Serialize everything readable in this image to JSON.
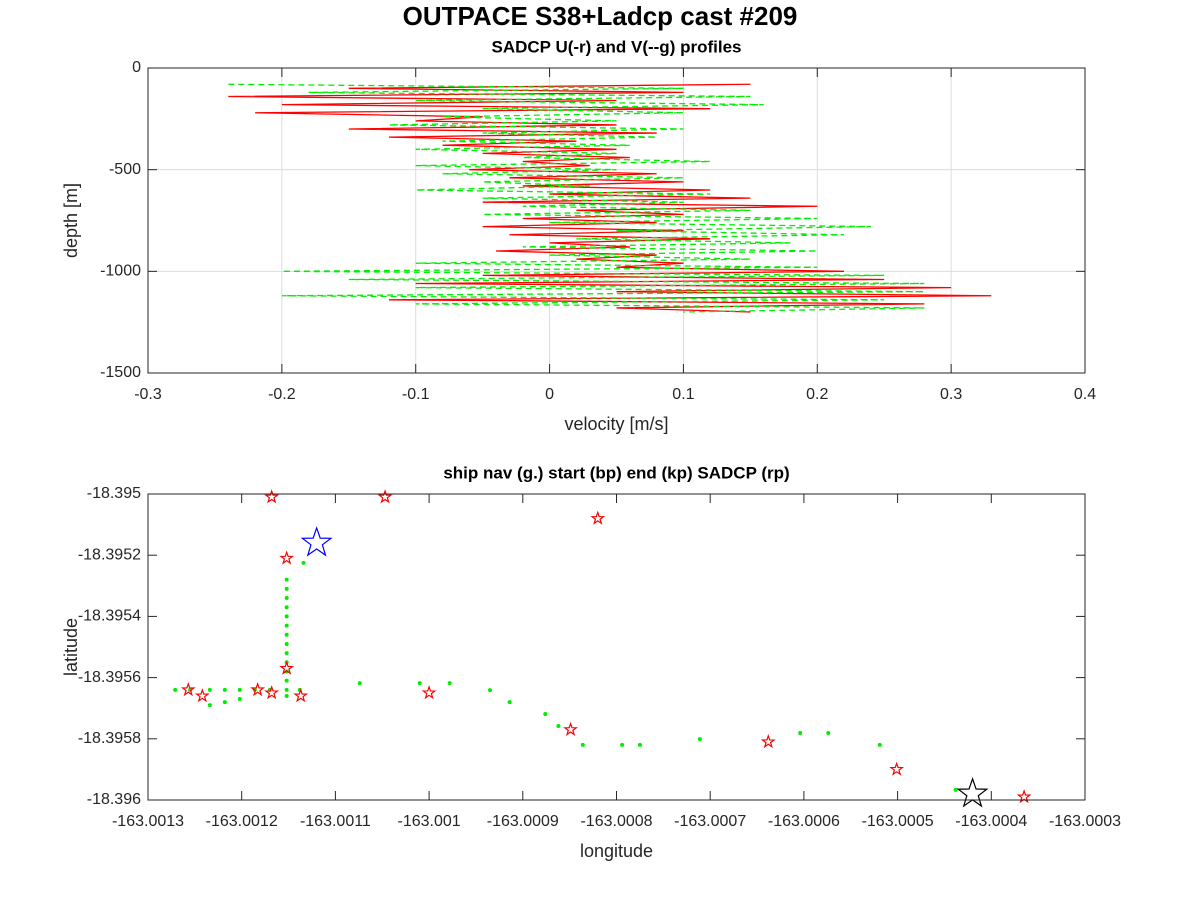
{
  "title": "OUTPACE S38+Ladcp cast #209",
  "chart_data": [
    {
      "type": "line",
      "title": "SADCP U(-r) and V(--g) profiles",
      "xlabel": "velocity [m/s]",
      "ylabel": "depth [m]",
      "xlim": [
        -0.3,
        0.4
      ],
      "xticks": [
        -0.3,
        -0.2,
        -0.1,
        0,
        0.1,
        0.2,
        0.3,
        0.4
      ],
      "ylim": [
        -1500,
        0
      ],
      "yticks": [
        -1500,
        -1000,
        -500,
        0
      ],
      "grid": true,
      "series": [
        {
          "color": "#ff0000",
          "dash": "solid",
          "x": [
            0.15,
            -0.15,
            0.1,
            -0.24,
            0.05,
            -0.2,
            0.12,
            -0.22,
            -0.05,
            -0.1,
            0.05,
            -0.15,
            0.08,
            -0.12,
            0.02,
            -0.08,
            0.05,
            -0.05,
            0.06,
            -0.02,
            0.03,
            -0.06,
            0.08,
            -0.03,
            0.1,
            -0.02,
            0.12,
            0.0,
            0.15,
            -0.05,
            0.2,
            0.02,
            0.1,
            -0.02,
            0.08,
            -0.05,
            0.1,
            -0.03,
            0.12,
            0.0,
            0.06,
            -0.04,
            0.08,
            0.02,
            0.1,
            0.05,
            0.22,
            -0.05,
            0.25,
            -0.1,
            0.3,
            0.05,
            0.33,
            -0.12,
            0.28,
            0.05,
            0.15
          ],
          "y": [
            -80,
            -100,
            -120,
            -140,
            -160,
            -180,
            -200,
            -220,
            -240,
            -260,
            -280,
            -300,
            -320,
            -340,
            -360,
            -380,
            -400,
            -420,
            -440,
            -460,
            -480,
            -500,
            -520,
            -540,
            -560,
            -580,
            -600,
            -620,
            -640,
            -660,
            -680,
            -700,
            -720,
            -740,
            -760,
            -780,
            -800,
            -820,
            -840,
            -860,
            -880,
            -900,
            -920,
            -940,
            -960,
            -980,
            -1000,
            -1020,
            -1040,
            -1060,
            -1080,
            -1100,
            -1120,
            -1140,
            -1160,
            -1180,
            -1200
          ]
        },
        {
          "color": "#00ee00",
          "dash": "dashed",
          "x": [
            -0.24,
            0.1,
            -0.18,
            0.15,
            -0.1,
            0.16,
            -0.05,
            0.1,
            -0.08,
            0.05,
            -0.12,
            0.1,
            -0.05,
            0.08,
            -0.08,
            0.06,
            -0.1,
            0.05,
            -0.02,
            0.12,
            -0.1,
            0.05,
            -0.08,
            0.1,
            -0.05,
            0.03,
            -0.1,
            0.12,
            -0.05,
            0.1,
            -0.02,
            0.15,
            -0.05,
            0.2,
            0.0,
            0.24,
            0.05,
            0.22,
            0.02,
            0.18,
            -0.02,
            0.2,
            0.0,
            0.15,
            -0.1,
            0.2,
            -0.2,
            0.25,
            -0.15,
            0.28,
            -0.1,
            0.28,
            -0.2,
            0.25,
            -0.1,
            0.28,
            0.1
          ],
          "y": [
            -80,
            -100,
            -120,
            -140,
            -160,
            -180,
            -200,
            -220,
            -240,
            -260,
            -280,
            -300,
            -320,
            -340,
            -360,
            -380,
            -400,
            -420,
            -440,
            -460,
            -480,
            -500,
            -520,
            -540,
            -560,
            -580,
            -600,
            -620,
            -640,
            -660,
            -680,
            -700,
            -720,
            -740,
            -760,
            -780,
            -800,
            -820,
            -840,
            -860,
            -880,
            -900,
            -920,
            -940,
            -960,
            -980,
            -1000,
            -1020,
            -1040,
            -1060,
            -1080,
            -1100,
            -1120,
            -1140,
            -1160,
            -1180,
            -1200
          ]
        }
      ]
    },
    {
      "type": "scatter",
      "title": "ship nav (g.) start (bp) end (kp) SADCP (rp)",
      "xlabel": "longitude",
      "ylabel": "latitude",
      "xlim": [
        -163.0013,
        -163.0003
      ],
      "xticks": [
        -163.0013,
        -163.0012,
        -163.0011,
        -163.001,
        -163.0009,
        -163.0008,
        -163.0007,
        -163.0006,
        -163.0005,
        -163.0004,
        -163.0003
      ],
      "ylim": [
        -18.396,
        -18.395
      ],
      "yticks": [
        -18.396,
        -18.3958,
        -18.3956,
        -18.3954,
        -18.3952,
        -18.395
      ],
      "grid": false,
      "series": [
        {
          "color": "#00ee00",
          "marker": "dot",
          "markersize": 4,
          "x": [
            -163.001152,
            -163.001152,
            -163.001152,
            -163.001152,
            -163.001152,
            -163.001152,
            -163.001152,
            -163.001152,
            -163.001152,
            -163.001152,
            -163.001152,
            -163.001152,
            -163.001152,
            -163.001152,
            -163.001271,
            -163.001255,
            -163.001234,
            -163.001218,
            -163.001202,
            -163.001186,
            -163.00117,
            -163.001138,
            -163.001234,
            -163.001218,
            -163.001202,
            -163.001134,
            -163.001074,
            -163.00101,
            -163.000978,
            -163.000935,
            -163.000914,
            -163.000876,
            -163.000862,
            -163.000836,
            -163.000794,
            -163.000775,
            -163.000711,
            -163.000604,
            -163.000574,
            -163.000519,
            -163.000438
          ],
          "y": [
            -18.39528,
            -18.39531,
            -18.39534,
            -18.39537,
            -18.3954,
            -18.39543,
            -18.39546,
            -18.39549,
            -18.39552,
            -18.39555,
            -18.39558,
            -18.39561,
            -18.39564,
            -18.39566,
            -18.39564,
            -18.39564,
            -18.39564,
            -18.39564,
            -18.39564,
            -18.39564,
            -18.39564,
            -18.39564,
            -18.39569,
            -18.39568,
            -18.39567,
            -18.395225,
            -18.395618,
            -18.395618,
            -18.395618,
            -18.395641,
            -18.39568,
            -18.395719,
            -18.395758,
            -18.39582,
            -18.39582,
            -18.39582,
            -18.395801,
            -18.395781,
            -18.395781,
            -18.39582,
            -18.395967
          ]
        },
        {
          "color": "#ff0000",
          "marker": "star",
          "markersize": 6,
          "x": [
            -163.001168,
            -163.001047,
            -163.00082,
            -163.001152,
            -163.001152,
            -163.001183,
            -163.001168,
            -163.001137,
            -163.001257,
            -163.001242,
            -163.001,
            -163.000849,
            -163.000638,
            -163.000501,
            -163.000365
          ],
          "y": [
            -18.39501,
            -18.39501,
            -18.39508,
            -18.39521,
            -18.39557,
            -18.39564,
            -18.39565,
            -18.39566,
            -18.39564,
            -18.39566,
            -18.39565,
            -18.39577,
            -18.39581,
            -18.3959,
            -18.39599
          ]
        },
        {
          "color": "#0000ff",
          "marker": "star",
          "markersize": 15,
          "x": [
            -163.00112
          ],
          "y": [
            -18.39516
          ]
        },
        {
          "color": "#000000",
          "marker": "star",
          "markersize": 15,
          "x": [
            -163.00042
          ],
          "y": [
            -18.39598
          ]
        }
      ]
    }
  ]
}
